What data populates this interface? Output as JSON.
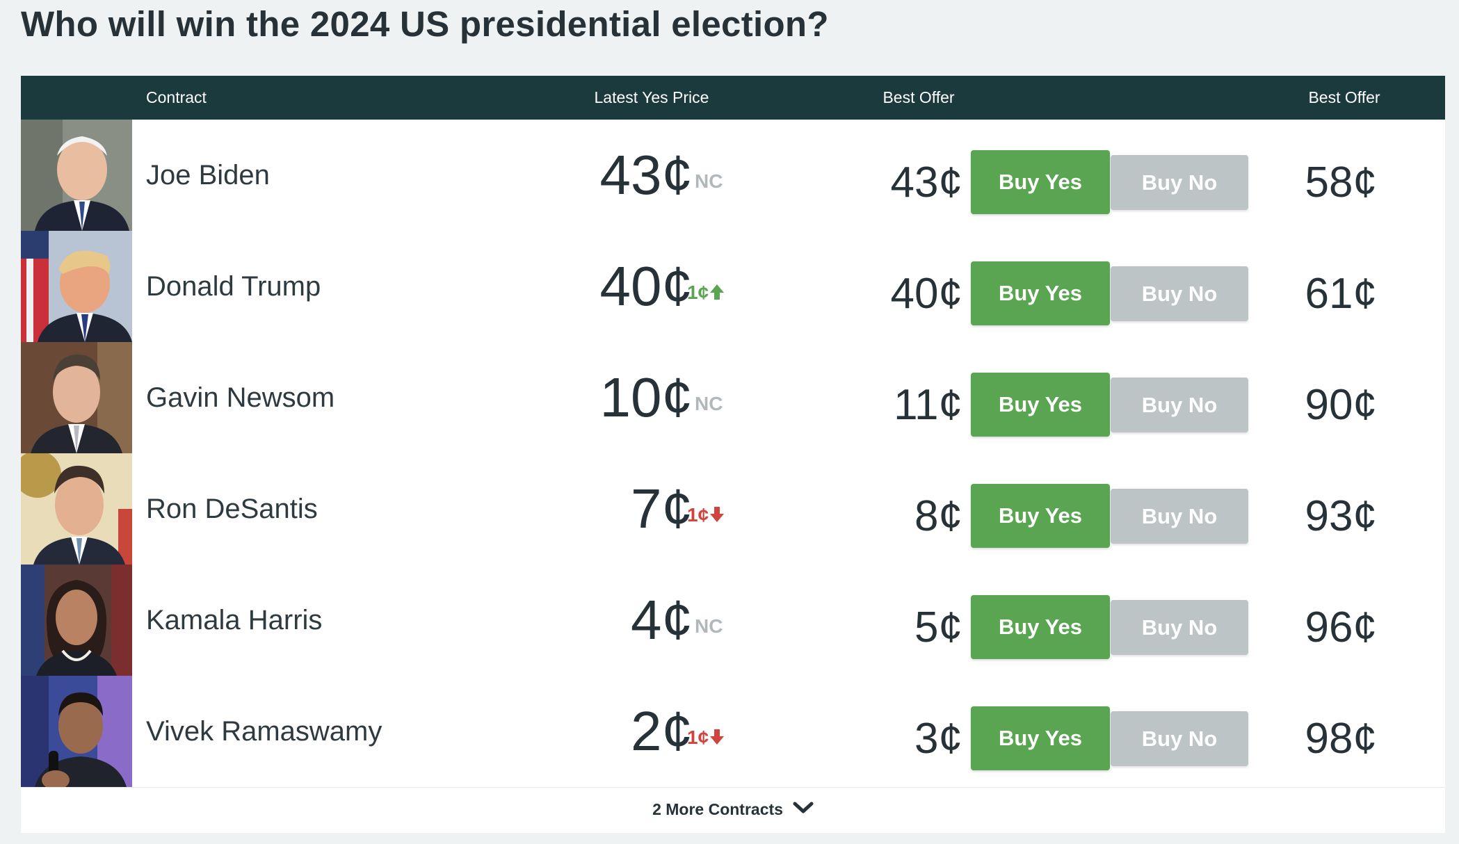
{
  "title": "Who will win the 2024 US presidential election?",
  "table": {
    "headers": {
      "contract": "Contract",
      "latest_yes_price": "Latest Yes Price",
      "best_offer_yes": "Best Offer",
      "best_offer_no": "Best Offer"
    },
    "rows": [
      {
        "name": "Joe Biden",
        "price": "43¢",
        "change": "NC",
        "change_dir": "none",
        "best_yes": "43¢",
        "buy_yes": "Buy Yes",
        "buy_no": "Buy No",
        "best_no": "58¢"
      },
      {
        "name": "Donald Trump",
        "price": "40¢",
        "change": "1¢",
        "change_dir": "up",
        "best_yes": "40¢",
        "buy_yes": "Buy Yes",
        "buy_no": "Buy No",
        "best_no": "61¢"
      },
      {
        "name": "Gavin Newsom",
        "price": "10¢",
        "change": "NC",
        "change_dir": "none",
        "best_yes": "11¢",
        "buy_yes": "Buy Yes",
        "buy_no": "Buy No",
        "best_no": "90¢"
      },
      {
        "name": "Ron DeSantis",
        "price": "7¢",
        "change": "1¢",
        "change_dir": "down",
        "best_yes": "8¢",
        "buy_yes": "Buy Yes",
        "buy_no": "Buy No",
        "best_no": "93¢"
      },
      {
        "name": "Kamala Harris",
        "price": "4¢",
        "change": "NC",
        "change_dir": "none",
        "best_yes": "5¢",
        "buy_yes": "Buy Yes",
        "buy_no": "Buy No",
        "best_no": "96¢"
      },
      {
        "name": "Vivek Ramaswamy",
        "price": "2¢",
        "change": "1¢",
        "change_dir": "down",
        "best_yes": "3¢",
        "buy_yes": "Buy Yes",
        "buy_no": "Buy No",
        "best_no": "98¢"
      }
    ]
  },
  "more": {
    "label": "2 More Contracts",
    "icon": "chevron-down-icon"
  },
  "colors": {
    "header_bg": "#1b3a3e",
    "buy_yes": "#5aa551",
    "buy_no": "#bcc4c6",
    "change_up": "#5aa551",
    "change_down": "#d0443f",
    "no_change": "#b0b8bc"
  }
}
